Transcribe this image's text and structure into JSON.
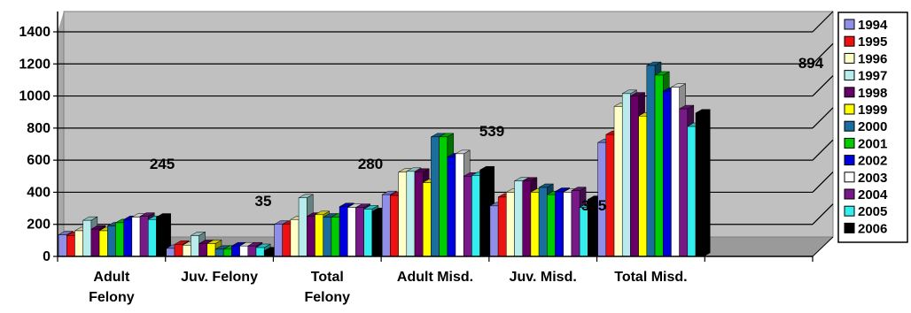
{
  "chart_data": {
    "type": "bar",
    "categories": [
      "Adult Felony",
      "Juv. Felony",
      "Total Felony",
      "Adult Misd.",
      "Juv. Misd.",
      "Total Misd."
    ],
    "category_lines": [
      [
        "Adult",
        "Felony"
      ],
      [
        "Juv. Felony"
      ],
      [
        "Total",
        "Felony"
      ],
      [
        "Adult Misd."
      ],
      [
        "Juv. Misd."
      ],
      [
        "Total Misd."
      ]
    ],
    "ylim": [
      0,
      1400
    ],
    "yticks": [
      0,
      200,
      400,
      600,
      800,
      1000,
      1200,
      1400
    ],
    "grid": true,
    "legend_position": "right",
    "series": [
      {
        "name": "1994",
        "color": "#8f8fe8",
        "values": [
          135,
          50,
          200,
          385,
          315,
          710
        ]
      },
      {
        "name": "1995",
        "color": "#ee1111",
        "values": [
          130,
          75,
          200,
          380,
          370,
          760
        ]
      },
      {
        "name": "1996",
        "color": "#ffffc8",
        "values": [
          160,
          70,
          230,
          525,
          400,
          935
        ]
      },
      {
        "name": "1997",
        "color": "#b8ecec",
        "values": [
          225,
          130,
          365,
          530,
          470,
          1015
        ]
      },
      {
        "name": "1998",
        "color": "#660066",
        "values": [
          170,
          80,
          250,
          525,
          470,
          1000
        ]
      },
      {
        "name": "1999",
        "color": "#ffff00",
        "values": [
          160,
          80,
          260,
          460,
          400,
          875
        ]
      },
      {
        "name": "2000",
        "color": "#1a6e9e",
        "values": [
          190,
          45,
          245,
          745,
          430,
          1190
        ]
      },
      {
        "name": "2001",
        "color": "#00cc00",
        "values": [
          210,
          45,
          245,
          745,
          385,
          1130
        ]
      },
      {
        "name": "2002",
        "color": "#0000dd",
        "values": [
          230,
          65,
          310,
          620,
          405,
          1030
        ]
      },
      {
        "name": "2003",
        "color": "#ffffff",
        "values": [
          245,
          65,
          305,
          640,
          400,
          1055
        ]
      },
      {
        "name": "2004",
        "color": "#771a88",
        "values": [
          250,
          65,
          305,
          500,
          410,
          920
        ]
      },
      {
        "name": "2005",
        "color": "#33eeee",
        "values": [
          230,
          55,
          295,
          505,
          305,
          810
        ]
      },
      {
        "name": "2006",
        "color": "#000000",
        "values": [
          245,
          35,
          280,
          539,
          355,
          894
        ]
      }
    ],
    "annotations": [
      {
        "text": "245",
        "category": 0
      },
      {
        "text": "35",
        "category": 1
      },
      {
        "text": "280",
        "category": 2
      },
      {
        "text": "539",
        "category": 3
      },
      {
        "text": "355",
        "category": 4
      },
      {
        "text": "894",
        "category": 5
      }
    ]
  }
}
